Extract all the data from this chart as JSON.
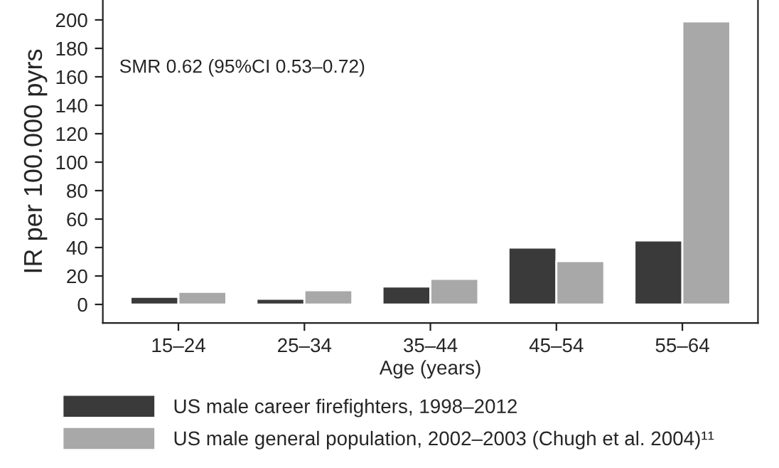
{
  "chart_data": {
    "type": "bar",
    "xlabel": "Age (years)",
    "ylabel": "IR per 100.000 pyrs",
    "categories": [
      "15–24",
      "25–34",
      "35–44",
      "45–54",
      "55–64"
    ],
    "series": [
      {
        "name": "US male career firefighters, 1998–2012",
        "color": "#3a3a3a",
        "values": [
          5.3,
          3.9,
          12.6,
          40,
          45
        ]
      },
      {
        "name": "US male general population, 2002–2003 (Chugh et al. 2004)¹¹",
        "color": "#a8a8a8",
        "values": [
          8.8,
          10,
          18,
          30.5,
          199
        ]
      }
    ],
    "ylim": [
      -13,
      214
    ],
    "yticks": [
      0,
      20,
      40,
      60,
      80,
      100,
      120,
      140,
      160,
      180,
      200
    ],
    "annotations": [
      "SMR 0.62 (95%CI 0.53–0.72)"
    ],
    "grid": false,
    "legend": "bottom"
  }
}
